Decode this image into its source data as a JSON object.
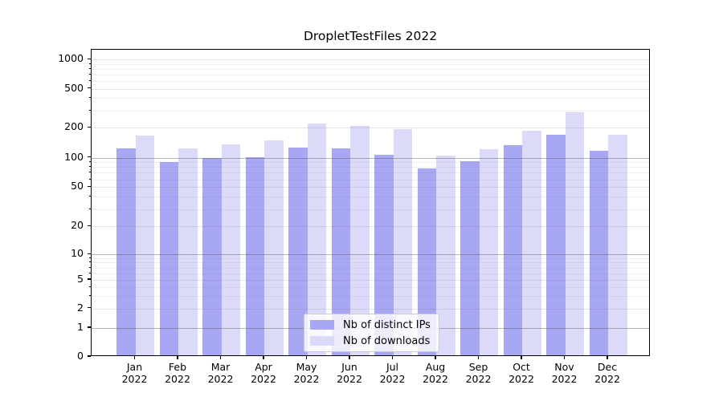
{
  "chart_data": {
    "type": "bar",
    "title": "DropletTestFiles 2022",
    "categories": [
      "Jan",
      "Feb",
      "Mar",
      "Apr",
      "May",
      "Jun",
      "Jul",
      "Aug",
      "Sep",
      "Oct",
      "Nov",
      "Dec"
    ],
    "category_year": "2022",
    "series": [
      {
        "name": "Nb of distinct IPs",
        "color": "#a7a7f4",
        "values": [
          125,
          90,
          100,
          102,
          127,
          124,
          107,
          78,
          92,
          133,
          169,
          118
        ]
      },
      {
        "name": "Nb of downloads",
        "color": "#dbdbf9",
        "values": [
          166,
          125,
          137,
          150,
          219,
          210,
          193,
          105,
          122,
          186,
          287,
          170
        ]
      }
    ],
    "yscale": "symlog",
    "yticks": [
      0,
      1,
      2,
      5,
      10,
      20,
      50,
      100,
      200,
      500,
      1000
    ],
    "ylim": [
      0,
      1264
    ],
    "grid": true,
    "legend_position": "lower center"
  }
}
